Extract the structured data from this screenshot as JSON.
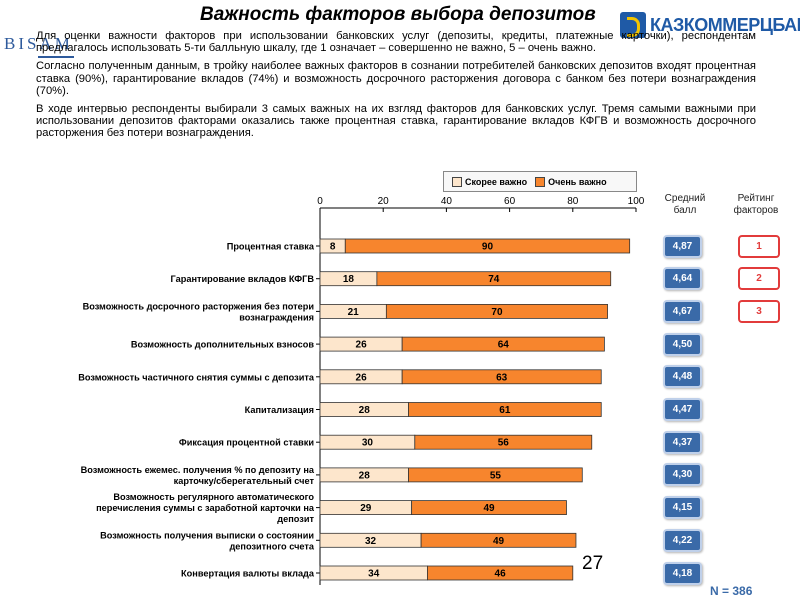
{
  "header": {
    "logo_text": "BISAM",
    "title": "Важность факторов выбора депозитов",
    "brand_name": "КАЗКОММЕРЦБАНК"
  },
  "paragraphs": [
    "Для оценки важности факторов при использовании банковских услуг (депозиты, кредиты, платежные карточки), респондентам предлагалось использовать 5-ти балльную шкалу, где 1 означает – совершенно не важно, 5 – очень важно.",
    "Согласно полученным данным, в тройку наиболее важных факторов в сознании потребителей банковских депозитов входят процентная ставка (90%), гарантирование вкладов (74%) и возможность досрочного расторжения договора с банком без потери вознаграждения (70%).",
    "В ходе интервью респонденты выбирали 3 самых важных на их взгляд факторов для банковских услуг. Тремя самыми важными при использовании депозитов факторами оказались также процентная ставка, гарантирование вкладов КФГВ и возможность досрочного расторжения без потери вознаграждения."
  ],
  "legend": {
    "item1": "Скорее важно",
    "item2": "Очень важно"
  },
  "colors": {
    "rather_important": "#fde6cc",
    "very_important": "#f7852d",
    "score_badge": "#3a6aa8",
    "rank_badge": "#e23b3b"
  },
  "columns": {
    "avg_score": "Средний балл",
    "rating": "Рейтинг факторов"
  },
  "chart_data": {
    "type": "bar",
    "orientation": "horizontal",
    "stacked": true,
    "xlim": [
      0,
      100
    ],
    "xticks": [
      0,
      20,
      40,
      60,
      80,
      100
    ],
    "legend_position": "top-right",
    "grid": false,
    "categories": [
      "Процентная ставка",
      "Гарантирование вкладов КФГВ",
      "Возможность досрочного расторжения без потери вознаграждения",
      "Возможность дополнительных взносов",
      "Возможность частичного снятия суммы с депозита",
      "Капитализация",
      "Фиксация процентной ставки",
      "Возможность ежемес. получения % по депозиту на карточку/сберегательный счет",
      "Возможность регулярного автоматического перечисления суммы с заработной карточки на депозит",
      "Возможность получения выписки о состоянии депозитного счета",
      "Конвертация валюты вклада"
    ],
    "series": [
      {
        "name": "Скорее важно",
        "values": [
          8,
          18,
          21,
          26,
          26,
          28,
          30,
          28,
          29,
          32,
          34
        ]
      },
      {
        "name": "Очень важно",
        "values": [
          90,
          74,
          70,
          64,
          63,
          61,
          56,
          55,
          49,
          49,
          46
        ]
      }
    ]
  },
  "avg_scores": [
    "4,87",
    "4,64",
    "4,67",
    "4,50",
    "4,48",
    "4,47",
    "4,37",
    "4,30",
    "4,15",
    "4,22",
    "4,18"
  ],
  "ranks": [
    "1",
    "2",
    "3"
  ],
  "footer": {
    "page_number": "27",
    "sample": "N = 386"
  }
}
